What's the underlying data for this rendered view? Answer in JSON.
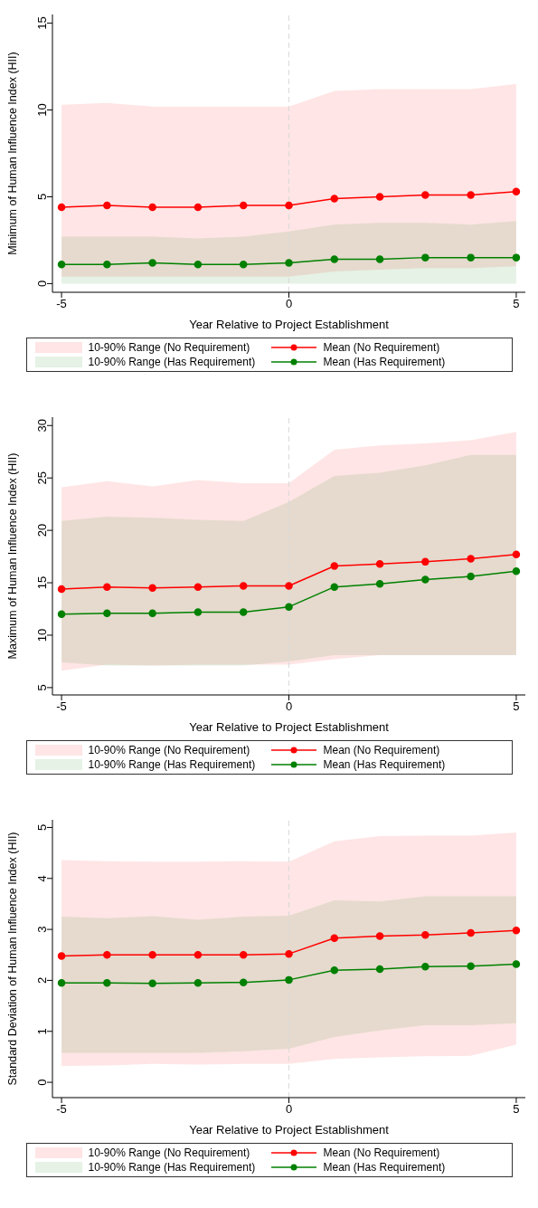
{
  "chart_data": [
    {
      "type": "line",
      "ylabel": "Minimum of Human Influence Index (HII)",
      "xlabel": "Year Relative to Project Establishment",
      "x": [
        -5,
        -4,
        -3,
        -2,
        -1,
        0,
        1,
        2,
        3,
        4,
        5
      ],
      "xlim": [
        -5.2,
        5.2
      ],
      "xticks": [
        -5,
        0,
        5
      ],
      "ylim": [
        -0.5,
        15.5
      ],
      "yticks": [
        0,
        5,
        10,
        15
      ],
      "legend": "bottom",
      "marker": "circle",
      "line_style": "solid",
      "annotations": [
        "10-90% Range (No Requirement)",
        "10-90% Range (Has Requirement)"
      ],
      "ref_lines": [
        {
          "axis": "x",
          "value": 0,
          "color": "#d9d9d9",
          "line_style": "dashed"
        }
      ],
      "series": [
        {
          "name": "Mean (No Requirement)",
          "color": "#ff0000",
          "values": [
            4.4,
            4.5,
            4.4,
            4.4,
            4.5,
            4.5,
            4.9,
            5.0,
            5.1,
            5.1,
            5.3
          ],
          "lower": [
            0.4,
            0.4,
            0.4,
            0.4,
            0.4,
            0.4,
            0.7,
            0.8,
            0.9,
            0.9,
            1.0
          ],
          "upper": [
            10.3,
            10.4,
            10.2,
            10.2,
            10.2,
            10.2,
            11.1,
            11.2,
            11.2,
            11.2,
            11.5
          ]
        },
        {
          "name": "Mean (Has Requirement)",
          "color": "#008000",
          "values": [
            1.1,
            1.1,
            1.2,
            1.1,
            1.1,
            1.2,
            1.4,
            1.4,
            1.5,
            1.5,
            1.5
          ],
          "lower": [
            0,
            0,
            0,
            0,
            0,
            0,
            0,
            0,
            0,
            0,
            0
          ],
          "upper": [
            2.7,
            2.7,
            2.7,
            2.6,
            2.7,
            3.0,
            3.4,
            3.5,
            3.5,
            3.4,
            3.6
          ]
        }
      ]
    },
    {
      "type": "line",
      "ylabel": "Maximum of Human Influence Index (HII)",
      "xlabel": "Year Relative to Project Establishment",
      "x": [
        -5,
        -4,
        -3,
        -2,
        -1,
        0,
        1,
        2,
        3,
        4,
        5
      ],
      "xlim": [
        -5.2,
        5.2
      ],
      "xticks": [
        -5,
        0,
        5
      ],
      "ylim": [
        4.3,
        30.8
      ],
      "yticks": [
        5,
        10,
        15,
        20,
        25,
        30
      ],
      "legend": "bottom",
      "marker": "circle",
      "line_style": "solid",
      "annotations": [
        "10-90% Range (No Requirement)",
        "10-90% Range (Has Requirement)"
      ],
      "ref_lines": [
        {
          "axis": "x",
          "value": 0,
          "color": "#d9d9d9",
          "line_style": "dashed"
        }
      ],
      "series": [
        {
          "name": "Mean (No Requirement)",
          "color": "#ff0000",
          "values": [
            14.4,
            14.6,
            14.5,
            14.6,
            14.7,
            14.7,
            16.6,
            16.8,
            17.0,
            17.3,
            17.7
          ],
          "lower": [
            6.6,
            7.2,
            7.1,
            7.2,
            7.2,
            7.2,
            7.7,
            8.1,
            8.1,
            8.1,
            8.1
          ],
          "upper": [
            24.1,
            24.7,
            24.2,
            24.8,
            24.5,
            24.5,
            27.7,
            28.1,
            28.3,
            28.6,
            29.4
          ]
        },
        {
          "name": "Mean (Has Requirement)",
          "color": "#008000",
          "values": [
            12.0,
            12.1,
            12.1,
            12.2,
            12.2,
            12.7,
            14.6,
            14.9,
            15.3,
            15.6,
            16.1
          ],
          "lower": [
            7.4,
            7.1,
            7.1,
            7.1,
            7.1,
            7.5,
            8.1,
            8.1,
            8.1,
            8.1,
            8.1
          ],
          "upper": [
            20.9,
            21.3,
            21.2,
            21.0,
            20.9,
            22.7,
            25.2,
            25.5,
            26.2,
            27.2,
            27.2
          ]
        }
      ]
    },
    {
      "type": "line",
      "ylabel": "Standard Deviation of Human Influence Index (HII)",
      "xlabel": "Year Relative to Project Establishment",
      "x": [
        -5,
        -4,
        -3,
        -2,
        -1,
        0,
        1,
        2,
        3,
        4,
        5
      ],
      "xlim": [
        -5.2,
        5.2
      ],
      "xticks": [
        -5,
        0,
        5
      ],
      "ylim": [
        -0.3,
        5.15
      ],
      "yticks": [
        0,
        1,
        2,
        3,
        4,
        5
      ],
      "legend": "bottom",
      "marker": "circle",
      "line_style": "solid",
      "annotations": [
        "10-90% Range (No Requirement)",
        "10-90% Range (Has Requirement)"
      ],
      "ref_lines": [
        {
          "axis": "x",
          "value": 0,
          "color": "#d9d9d9",
          "line_style": "dashed"
        }
      ],
      "series": [
        {
          "name": "Mean (No Requirement)",
          "color": "#ff0000",
          "values": [
            2.48,
            2.5,
            2.5,
            2.5,
            2.5,
            2.52,
            2.83,
            2.87,
            2.89,
            2.93,
            2.98
          ],
          "lower": [
            0.32,
            0.33,
            0.36,
            0.35,
            0.36,
            0.36,
            0.46,
            0.49,
            0.51,
            0.52,
            0.74
          ],
          "upper": [
            4.36,
            4.34,
            4.33,
            4.33,
            4.34,
            4.33,
            4.73,
            4.83,
            4.84,
            4.84,
            4.9
          ]
        },
        {
          "name": "Mean (Has Requirement)",
          "color": "#008000",
          "values": [
            1.95,
            1.95,
            1.94,
            1.95,
            1.96,
            2.01,
            2.2,
            2.22,
            2.27,
            2.28,
            2.32
          ],
          "lower": [
            0.58,
            0.58,
            0.58,
            0.58,
            0.61,
            0.66,
            0.89,
            1.02,
            1.12,
            1.12,
            1.16
          ],
          "upper": [
            3.25,
            3.22,
            3.26,
            3.19,
            3.25,
            3.27,
            3.57,
            3.55,
            3.65,
            3.65,
            3.65
          ]
        }
      ]
    }
  ]
}
